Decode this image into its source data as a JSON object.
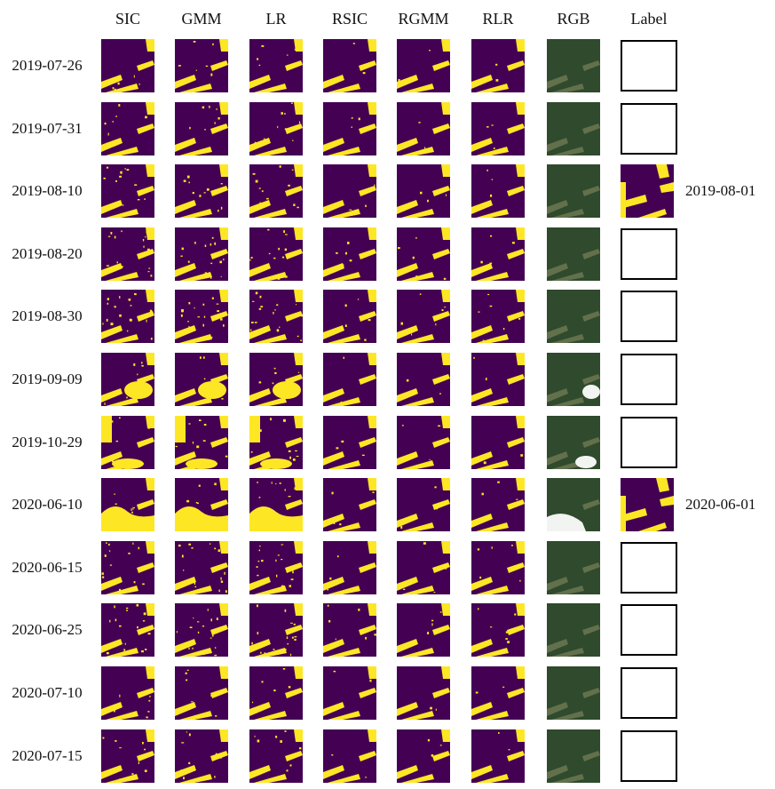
{
  "figure": {
    "columns": [
      "SIC",
      "GMM",
      "LR",
      "RSIC",
      "RGMM",
      "RLR",
      "RGB",
      "Label"
    ],
    "rows": [
      {
        "date": "2019-07-26",
        "has_label": false,
        "label_date": ""
      },
      {
        "date": "2019-07-31",
        "has_label": false,
        "label_date": ""
      },
      {
        "date": "2019-08-10",
        "has_label": true,
        "label_date": "2019-08-01"
      },
      {
        "date": "2019-08-20",
        "has_label": false,
        "label_date": ""
      },
      {
        "date": "2019-08-30",
        "has_label": false,
        "label_date": ""
      },
      {
        "date": "2019-09-09",
        "has_label": false,
        "label_date": ""
      },
      {
        "date": "2019-10-29",
        "has_label": false,
        "label_date": ""
      },
      {
        "date": "2020-06-10",
        "has_label": true,
        "label_date": "2020-06-01"
      },
      {
        "date": "2020-06-15",
        "has_label": false,
        "label_date": ""
      },
      {
        "date": "2020-06-25",
        "has_label": false,
        "label_date": ""
      },
      {
        "date": "2020-07-10",
        "has_label": false,
        "label_date": ""
      },
      {
        "date": "2020-07-15",
        "has_label": false,
        "label_date": ""
      }
    ],
    "colors": {
      "background_class": "#440154",
      "foreground_class": "#fde725",
      "rgb_forest": "#2f4a2c",
      "rgb_clearing": "#6f7a55",
      "cloud": "#f2f4f2",
      "label_border": "#000000"
    }
  }
}
